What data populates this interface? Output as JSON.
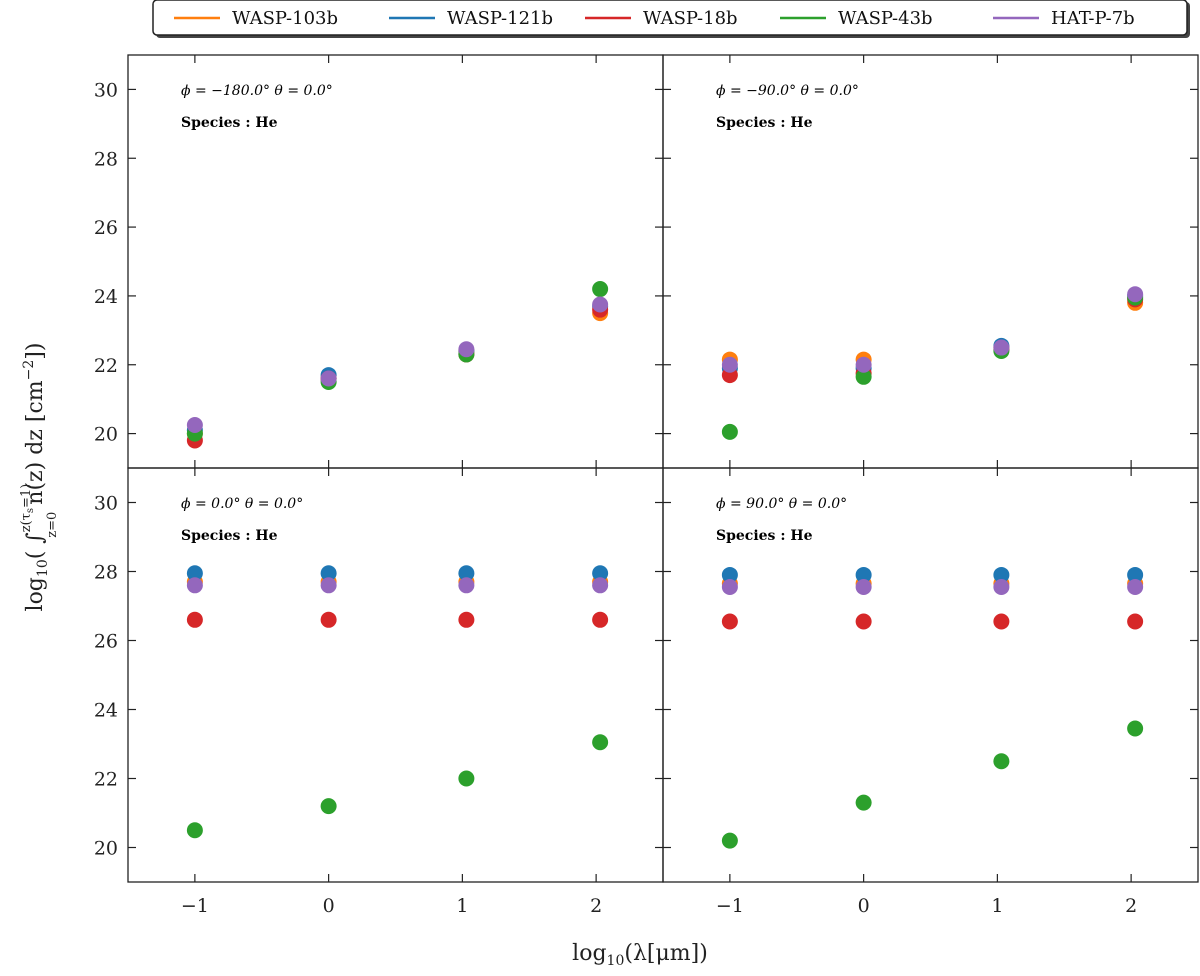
{
  "chart_data": {
    "type": "scatter",
    "layout": "2x2 subplots, shared axes",
    "xlabel": "log10(λ[μm])",
    "ylabel": "log10( ∫ n(z) dz [cm⁻²])",
    "ylabel_parts": {
      "pre": "log",
      "sub10": "10",
      "open": "( ∫",
      "upper": "z(τ",
      "upper_sub": "s",
      "upper_end": "=1)",
      "lower": "z=0",
      "post": " n(z) dz [cm",
      "exp": "−2",
      "close": "])"
    },
    "xlabel_parts": {
      "pre": "log",
      "sub10": "10",
      "post": "(λ[μm])"
    },
    "xlim": [
      -1.5,
      2.5
    ],
    "ylim": [
      19,
      31
    ],
    "xticks": [
      -1,
      0,
      1,
      2
    ],
    "xtick_labels": [
      "−1",
      "0",
      "1",
      "2"
    ],
    "yticks": [
      20,
      22,
      24,
      26,
      28,
      30
    ],
    "ytick_labels": [
      "20",
      "22",
      "24",
      "26",
      "28",
      "30"
    ],
    "x": [
      -1,
      0,
      1.03,
      2.03
    ],
    "legend": {
      "placement": "top-center, outside",
      "entries": [
        {
          "name": "WASP-103b",
          "color": "#ff7f0e"
        },
        {
          "name": "WASP-121b",
          "color": "#1f77b4"
        },
        {
          "name": "WASP-18b",
          "color": "#d62728"
        },
        {
          "name": "WASP-43b",
          "color": "#2ca02c"
        },
        {
          "name": "HAT-P-7b",
          "color": "#9467bd"
        }
      ]
    },
    "panels": [
      {
        "position": "top-left",
        "annotation": "ϕ = −180.0° θ = 0.0°",
        "species": "Species : He",
        "series": [
          {
            "name": "WASP-103b",
            "values": [
              20.0,
              21.6,
              22.4,
              23.5
            ]
          },
          {
            "name": "WASP-121b",
            "values": [
              20.1,
              21.7,
              22.4,
              23.7
            ]
          },
          {
            "name": "WASP-18b",
            "values": [
              19.8,
              21.6,
              22.3,
              23.6
            ]
          },
          {
            "name": "WASP-43b",
            "values": [
              20.0,
              21.5,
              22.3,
              24.2
            ]
          },
          {
            "name": "HAT-P-7b",
            "values": [
              20.25,
              21.6,
              22.45,
              23.75
            ]
          }
        ]
      },
      {
        "position": "top-right",
        "annotation": "ϕ = −90.0° θ = 0.0°",
        "species": "Species : He",
        "series": [
          {
            "name": "WASP-103b",
            "values": [
              22.15,
              22.15,
              22.5,
              23.8
            ]
          },
          {
            "name": "WASP-121b",
            "values": [
              21.9,
              21.9,
              22.55,
              24.0
            ]
          },
          {
            "name": "WASP-18b",
            "values": [
              21.7,
              21.75,
              22.45,
              23.9
            ]
          },
          {
            "name": "WASP-43b",
            "values": [
              20.05,
              21.65,
              22.4,
              23.95
            ]
          },
          {
            "name": "HAT-P-7b",
            "values": [
              22.0,
              22.0,
              22.5,
              24.05
            ]
          }
        ]
      },
      {
        "position": "bottom-left",
        "annotation": "ϕ = 0.0° θ = 0.0°",
        "species": "Species : He",
        "series": [
          {
            "name": "WASP-103b",
            "values": [
              27.7,
              27.7,
              27.7,
              27.7
            ]
          },
          {
            "name": "WASP-121b",
            "values": [
              27.95,
              27.95,
              27.95,
              27.95
            ]
          },
          {
            "name": "WASP-18b",
            "values": [
              26.6,
              26.6,
              26.6,
              26.6
            ]
          },
          {
            "name": "WASP-43b",
            "values": [
              20.5,
              21.2,
              22.0,
              23.05
            ]
          },
          {
            "name": "HAT-P-7b",
            "values": [
              27.6,
              27.6,
              27.6,
              27.6
            ]
          }
        ]
      },
      {
        "position": "bottom-right",
        "annotation": "ϕ = 90.0° θ = 0.0°",
        "species": "Species : He",
        "series": [
          {
            "name": "WASP-103b",
            "values": [
              27.65,
              27.65,
              27.65,
              27.65
            ]
          },
          {
            "name": "WASP-121b",
            "values": [
              27.9,
              27.9,
              27.9,
              27.9
            ]
          },
          {
            "name": "WASP-18b",
            "values": [
              26.55,
              26.55,
              26.55,
              26.55
            ]
          },
          {
            "name": "WASP-43b",
            "values": [
              20.2,
              21.3,
              22.5,
              23.45
            ]
          },
          {
            "name": "HAT-P-7b",
            "values": [
              27.55,
              27.55,
              27.55,
              27.55
            ]
          }
        ]
      }
    ]
  }
}
